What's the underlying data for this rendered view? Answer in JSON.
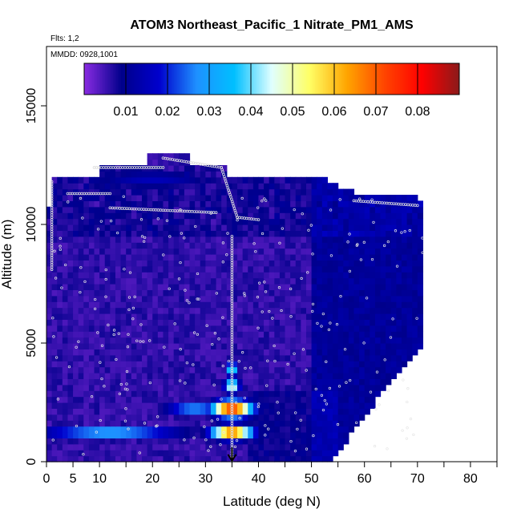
{
  "chart_data": {
    "type": "heatmap",
    "title": "ATOM3 Northeast_Pacific_1 Nitrate_PM1_AMS",
    "flights_label": "Flts: 1,2",
    "mmdd_label": "MMDD: 0928,1001",
    "xlabel": "Latitude (deg N)",
    "ylabel": "Altitude (m)",
    "xlim": [
      0,
      85
    ],
    "ylim": [
      0,
      17500
    ],
    "x_ticks": [
      0,
      5,
      10,
      20,
      30,
      40,
      50,
      60,
      70,
      80
    ],
    "x_minor_ticks": [
      15,
      25,
      35,
      45,
      55,
      65,
      75,
      85
    ],
    "y_ticks": [
      0,
      5000,
      10000,
      15000
    ],
    "colorbar": {
      "range": [
        0,
        0.09
      ],
      "ticks": [
        0.01,
        0.02,
        0.03,
        0.04,
        0.05,
        0.06,
        0.07,
        0.08
      ],
      "colors": [
        "#8a2be2",
        "#00008b",
        "#0000cd",
        "#1e90ff",
        "#00bfff",
        "#e0ffff",
        "#ffff66",
        "#ffa500",
        "#ff4500",
        "#ff0000",
        "#8b1a1a"
      ]
    },
    "altitude_bins_m": [
      0,
      250,
      500,
      750,
      1000,
      1250,
      1500,
      1750,
      2000,
      2250,
      2500,
      2750,
      3000,
      3250,
      3500,
      3750,
      4000,
      4250,
      4500,
      4750,
      5000,
      5250,
      5500,
      5750,
      6000,
      6250,
      6500,
      6750,
      7000,
      7250,
      7500,
      7750,
      8000,
      8250,
      8500,
      8750,
      9000,
      9250,
      9500,
      9750,
      10000,
      10250,
      10500,
      10750,
      11000,
      11250,
      11500,
      11750,
      12000,
      12250,
      12500,
      12750,
      13000
    ],
    "lat_extent_by_bin": [
      [
        0,
        54
      ],
      [
        0,
        55
      ],
      [
        0,
        56
      ],
      [
        0,
        57
      ],
      [
        0,
        57
      ],
      [
        0,
        58
      ],
      [
        0,
        59
      ],
      [
        0,
        60
      ],
      [
        0,
        61
      ],
      [
        0,
        62
      ],
      [
        0,
        62
      ],
      [
        0,
        63
      ],
      [
        0,
        64
      ],
      [
        0,
        65
      ],
      [
        0,
        66
      ],
      [
        0,
        67
      ],
      [
        0,
        68
      ],
      [
        0,
        69
      ],
      [
        0,
        70
      ],
      [
        0,
        71
      ],
      [
        0,
        71
      ],
      [
        0,
        71
      ],
      [
        0,
        71
      ],
      [
        0,
        71
      ],
      [
        0,
        71
      ],
      [
        0,
        71
      ],
      [
        0,
        71
      ],
      [
        0,
        71
      ],
      [
        0,
        71
      ],
      [
        0,
        71
      ],
      [
        0,
        71
      ],
      [
        0,
        71
      ],
      [
        0,
        71
      ],
      [
        0,
        71
      ],
      [
        0,
        71
      ],
      [
        0,
        71
      ],
      [
        0,
        71
      ],
      [
        0,
        71
      ],
      [
        0,
        71
      ],
      [
        0,
        71
      ],
      [
        0,
        71
      ],
      [
        0,
        71
      ],
      [
        0,
        71
      ],
      [
        1,
        71
      ],
      [
        1,
        70
      ],
      [
        1,
        58
      ],
      [
        1,
        55
      ],
      [
        1,
        53
      ],
      [
        10,
        34
      ],
      [
        10,
        34
      ],
      [
        19,
        27
      ],
      [
        19,
        27
      ]
    ],
    "enhancements": [
      {
        "lat": 35,
        "alt": 1250,
        "value": 0.075,
        "lat_half_width": 4,
        "alt_half_width": 300
      },
      {
        "lat": 35,
        "alt": 2250,
        "value": 0.08,
        "lat_half_width": 4,
        "alt_half_width": 350
      },
      {
        "lat": 35,
        "alt": 3200,
        "value": 0.05,
        "lat_half_width": 1.5,
        "alt_half_width": 300
      },
      {
        "lat": 35,
        "alt": 3900,
        "value": 0.07,
        "lat_half_width": 0.6,
        "alt_half_width": 300
      },
      {
        "lat": 12,
        "alt": 1250,
        "value": 0.035,
        "lat_half_width": 14,
        "alt_half_width": 250
      },
      {
        "lat": 28,
        "alt": 2250,
        "value": 0.03,
        "lat_half_width": 6,
        "alt_half_width": 300
      },
      {
        "lat": 20,
        "alt": 11900,
        "value": 0.015,
        "lat_half_width": 12,
        "alt_half_width": 400
      }
    ],
    "flight_track_segments": [
      [
        [
          1,
          8100
        ],
        [
          1,
          11800
        ]
      ],
      [
        [
          4,
          11300
        ],
        [
          12,
          11300
        ]
      ],
      [
        [
          12,
          10700
        ],
        [
          32,
          10500
        ]
      ],
      [
        [
          9,
          12400
        ],
        [
          22,
          12400
        ]
      ],
      [
        [
          22,
          12800
        ],
        [
          33,
          12400
        ]
      ],
      [
        [
          33,
          12400
        ],
        [
          36,
          10300
        ]
      ],
      [
        [
          36,
          10300
        ],
        [
          40,
          10200
        ]
      ],
      [
        [
          58,
          11000
        ],
        [
          70,
          10800
        ]
      ],
      [
        [
          35,
          9500
        ],
        [
          35,
          0
        ]
      ]
    ],
    "arrow": {
      "lat": 35,
      "alt_from": 600,
      "alt_to": 0
    }
  }
}
